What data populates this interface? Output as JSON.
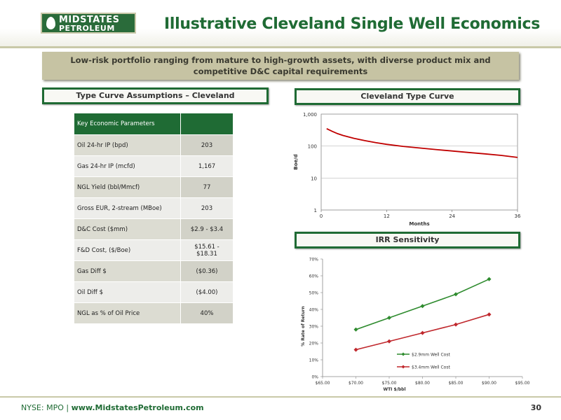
{
  "header": {
    "logo_line1": "MIDSTATES",
    "logo_line2": "PETROLEUM",
    "title": "Illustrative Cleveland Single Well Economics"
  },
  "banner": {
    "line1": "Low-risk portfolio ranging from mature to high-growth assets, with diverse product mix and",
    "line2": "competitive D&C capital requirements"
  },
  "left_section": {
    "title": "Type Curve Assumptions – Cleveland",
    "table": {
      "header": "Key Economic Parameters",
      "rows": [
        {
          "label": "Oil 24-hr IP (bpd)",
          "value": "203"
        },
        {
          "label": "Gas 24-hr IP (mcfd)",
          "value": "1,167"
        },
        {
          "label": "NGL Yield (bbl/Mmcf)",
          "value": "77"
        },
        {
          "label": "Gross EUR, 2-stream (MBoe)",
          "value": "203"
        },
        {
          "label": "D&C Cost ($mm)",
          "value": "$2.9 - $3.4"
        },
        {
          "label": "F&D Cost, ($/Boe)",
          "value": "$15.61 - $18.31"
        },
        {
          "label": "Gas Diff $",
          "value": "($0.36)"
        },
        {
          "label": "Oil Diff $",
          "value": "($4.00)"
        },
        {
          "label": "NGL as % of Oil Price",
          "value": "40%"
        }
      ]
    }
  },
  "right_top": {
    "title": "Cleveland Type Curve"
  },
  "right_bottom": {
    "title": "IRR Sensitivity"
  },
  "chart_data": [
    {
      "type": "line",
      "title": "",
      "xlabel": "Months",
      "ylabel": "Boe/d",
      "yscale": "log",
      "ylim": [
        1,
        1000
      ],
      "xlim": [
        0,
        36
      ],
      "xticks": [
        "0",
        "12",
        "24",
        "36"
      ],
      "yticks": [
        "1",
        "10",
        "100",
        "1,000"
      ],
      "color": "#c00000",
      "series": [
        {
          "x": [
            1,
            2,
            3,
            4,
            6,
            8,
            10,
            12,
            15,
            18,
            21,
            24,
            27,
            30,
            33,
            36
          ],
          "values": [
            350,
            290,
            245,
            215,
            175,
            148,
            128,
            113,
            98,
            87,
            78,
            70,
            63,
            57,
            51,
            44
          ]
        }
      ]
    },
    {
      "type": "line",
      "title": "",
      "xlabel": "WTI $/bbl",
      "ylabel": "% Rate of Return",
      "xlim": [
        65,
        95
      ],
      "ylim": [
        0,
        70
      ],
      "xticks": [
        "$65.00",
        "$70.00",
        "$75.00",
        "$80.00",
        "$85.00",
        "$90.00",
        "$95.00"
      ],
      "yticks": [
        "0%",
        "10%",
        "20%",
        "30%",
        "40%",
        "50%",
        "60%",
        "70%"
      ],
      "grid": false,
      "legend": "bottom-center",
      "categories": [
        70,
        75,
        80,
        85,
        90
      ],
      "series": [
        {
          "name": "$2.9mm Well Cost",
          "color": "#2e8b2e",
          "values": [
            28,
            35,
            42,
            49,
            58
          ]
        },
        {
          "name": "$3.4mm Well Cost",
          "color": "#c0282d",
          "values": [
            16,
            21,
            26,
            31,
            37
          ]
        }
      ]
    }
  ],
  "footer": {
    "exchange": "NYSE: MPO | ",
    "website": "www.MidstatesPetroleum.com",
    "page": "30"
  }
}
